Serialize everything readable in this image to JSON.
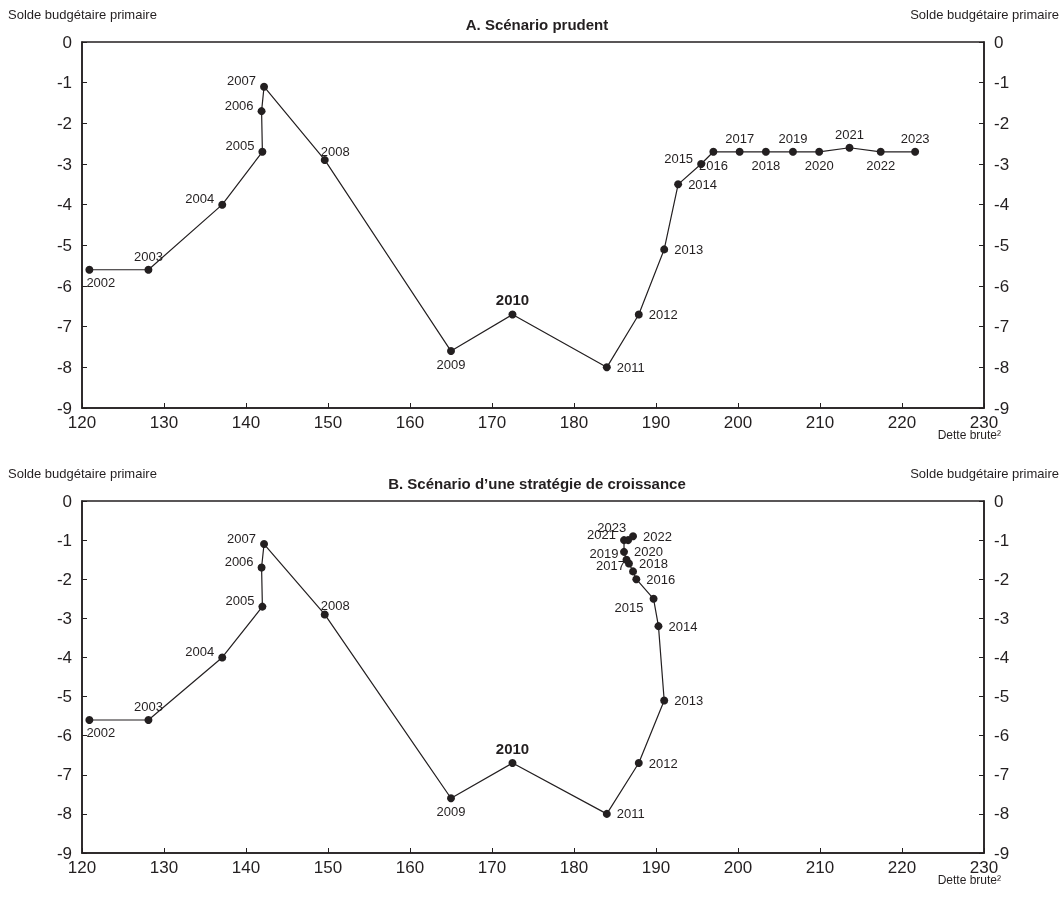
{
  "chart_data": [
    {
      "type": "line",
      "title": "A. Scénario prudent",
      "ylabel": "Solde budgétaire primaire",
      "y2label": "Solde budgétaire primaire",
      "xlabel": "Dette brute²",
      "series": [
        {
          "color": "#231f20",
          "x": [
            120.9,
            128.1,
            137.1,
            142.0,
            141.9,
            142.2,
            149.6,
            165.0,
            172.5,
            184.0,
            187.9,
            191.0,
            192.7,
            195.5,
            197.0,
            200.2,
            203.4,
            206.7,
            209.9,
            213.6,
            217.4,
            221.6
          ],
          "values": [
            -5.6,
            -5.6,
            -4.0,
            -2.7,
            -1.7,
            -1.1,
            -2.9,
            -7.6,
            -6.7,
            -8.0,
            -6.7,
            -5.1,
            -3.5,
            -3.0,
            -2.7,
            -2.7,
            -2.7,
            -2.7,
            -2.7,
            -2.6,
            -2.7,
            -2.7
          ]
        }
      ],
      "xlim": [
        120,
        230
      ],
      "xticks": [
        120,
        130,
        140,
        150,
        160,
        170,
        180,
        190,
        200,
        210,
        220,
        230
      ],
      "ylim": [
        -9,
        0
      ],
      "yticks": [
        -9,
        -8,
        -7,
        -6,
        -5,
        -4,
        -3,
        -2,
        -1,
        0
      ],
      "y2lim": [
        -9,
        0
      ],
      "y2ticks": [
        -9,
        -8,
        -7,
        -6,
        -5,
        -4,
        -3,
        -2,
        -1,
        0
      ],
      "grid": false,
      "marker": "circle",
      "line_style": "solid",
      "annotations": [
        {
          "text": "2002",
          "x": 120.9,
          "y": -5.6
        },
        {
          "text": "2003",
          "x": 128.1,
          "y": -5.6
        },
        {
          "text": "2004",
          "x": 137.1,
          "y": -4.0
        },
        {
          "text": "2005",
          "x": 142.0,
          "y": -2.7
        },
        {
          "text": "2006",
          "x": 141.9,
          "y": -1.7
        },
        {
          "text": "2007",
          "x": 142.2,
          "y": -1.1
        },
        {
          "text": "2008",
          "x": 149.6,
          "y": -2.9
        },
        {
          "text": "2009",
          "x": 165.0,
          "y": -7.6
        },
        {
          "text": "2010",
          "x": 172.5,
          "y": -6.7
        },
        {
          "text": "2011",
          "x": 184.0,
          "y": -8.0
        },
        {
          "text": "2012",
          "x": 187.9,
          "y": -6.7
        },
        {
          "text": "2013",
          "x": 191.0,
          "y": -5.1
        },
        {
          "text": "2014",
          "x": 192.7,
          "y": -3.5
        },
        {
          "text": "2015",
          "x": 195.5,
          "y": -3.0
        },
        {
          "text": "2016",
          "x": 197.0,
          "y": -2.7
        },
        {
          "text": "2017",
          "x": 200.2,
          "y": -2.7
        },
        {
          "text": "2018",
          "x": 203.4,
          "y": -2.7
        },
        {
          "text": "2019",
          "x": 206.7,
          "y": -2.7
        },
        {
          "text": "2020",
          "x": 209.9,
          "y": -2.7
        },
        {
          "text": "2021",
          "x": 213.6,
          "y": -2.6
        },
        {
          "text": "2022",
          "x": 217.4,
          "y": -2.7
        },
        {
          "text": "2023",
          "x": 221.6,
          "y": -2.7
        }
      ]
    },
    {
      "type": "line",
      "title": "B. Scénario d’une stratégie de croissance",
      "ylabel": "Solde budgétaire primaire",
      "y2label": "Solde budgétaire primaire",
      "xlabel": "Dette brute²",
      "series": [
        {
          "color": "#231f20",
          "x": [
            120.9,
            128.1,
            137.1,
            142.0,
            141.9,
            142.2,
            149.6,
            165.0,
            172.5,
            184.0,
            187.9,
            191.0,
            190.3,
            189.7,
            187.6,
            187.2,
            186.7,
            186.4,
            186.1,
            186.1,
            187.2,
            186.6
          ],
          "values": [
            -5.6,
            -5.6,
            -4.0,
            -2.7,
            -1.7,
            -1.1,
            -2.9,
            -7.6,
            -6.7,
            -8.0,
            -6.7,
            -5.1,
            -3.2,
            -2.5,
            -2.0,
            -1.8,
            -1.6,
            -1.5,
            -1.3,
            -1.0,
            -0.9,
            -1.0
          ]
        }
      ],
      "xlim": [
        120,
        230
      ],
      "xticks": [
        120,
        130,
        140,
        150,
        160,
        170,
        180,
        190,
        200,
        210,
        220,
        230
      ],
      "ylim": [
        -9,
        0
      ],
      "yticks": [
        -9,
        -8,
        -7,
        -6,
        -5,
        -4,
        -3,
        -2,
        -1,
        0
      ],
      "y2lim": [
        -9,
        0
      ],
      "y2ticks": [
        -9,
        -8,
        -7,
        -6,
        -5,
        -4,
        -3,
        -2,
        -1,
        0
      ],
      "grid": false,
      "marker": "circle",
      "line_style": "solid",
      "annotations": [
        {
          "text": "2002",
          "x": 120.9,
          "y": -5.6
        },
        {
          "text": "2003",
          "x": 128.1,
          "y": -5.6
        },
        {
          "text": "2004",
          "x": 137.1,
          "y": -4.0
        },
        {
          "text": "2005",
          "x": 142.0,
          "y": -2.7
        },
        {
          "text": "2006",
          "x": 141.9,
          "y": -1.7
        },
        {
          "text": "2007",
          "x": 142.2,
          "y": -1.1
        },
        {
          "text": "2008",
          "x": 149.6,
          "y": -2.9
        },
        {
          "text": "2009",
          "x": 165.0,
          "y": -7.6
        },
        {
          "text": "2010",
          "x": 172.5,
          "y": -6.7
        },
        {
          "text": "2011",
          "x": 184.0,
          "y": -8.0
        },
        {
          "text": "2012",
          "x": 187.9,
          "y": -6.7
        },
        {
          "text": "2013",
          "x": 191.0,
          "y": -5.1
        },
        {
          "text": "2014",
          "x": 190.3,
          "y": -3.2
        },
        {
          "text": "2015",
          "x": 189.7,
          "y": -2.5
        },
        {
          "text": "2016",
          "x": 187.6,
          "y": -2.0
        },
        {
          "text": "2017",
          "x": 187.2,
          "y": -1.8
        },
        {
          "text": "2018",
          "x": 186.7,
          "y": -1.6
        },
        {
          "text": "2019",
          "x": 186.4,
          "y": -1.5
        },
        {
          "text": "2020",
          "x": 186.1,
          "y": -1.3
        },
        {
          "text": "2021",
          "x": 186.1,
          "y": -1.0
        },
        {
          "text": "2022",
          "x": 187.2,
          "y": -0.9
        },
        {
          "text": "2023",
          "x": 186.6,
          "y": -1.0
        }
      ]
    }
  ]
}
